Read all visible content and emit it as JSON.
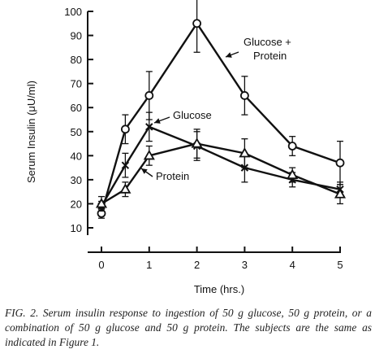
{
  "chart_data": {
    "type": "line",
    "xlabel": "Time (hrs.)",
    "ylabel": "Serum Insulin (μU/ml)",
    "xlim": [
      0,
      5
    ],
    "ylim": [
      10,
      100
    ],
    "xticks": [
      "0",
      "1",
      "2",
      "3",
      "4",
      "5"
    ],
    "yticks": [
      "10",
      "20",
      "30",
      "40",
      "50",
      "60",
      "70",
      "80",
      "90",
      "100"
    ],
    "series": [
      {
        "name": "Glucose + Protein",
        "label_lines": [
          "Glucose +",
          "Protein"
        ],
        "marker": "circle",
        "points": [
          {
            "x": 0,
            "y": 16,
            "err": 2
          },
          {
            "x": 0.5,
            "y": 51,
            "err": 6
          },
          {
            "x": 1,
            "y": 65,
            "err": 10
          },
          {
            "x": 2,
            "y": 95,
            "err": 12
          },
          {
            "x": 3,
            "y": 65,
            "err": 8
          },
          {
            "x": 4,
            "y": 44,
            "err": 4
          },
          {
            "x": 5,
            "y": 37,
            "err": 9
          }
        ]
      },
      {
        "name": "Glucose",
        "label_lines": [
          "Glucose"
        ],
        "marker": "x",
        "points": [
          {
            "x": 0,
            "y": 19,
            "err": 2
          },
          {
            "x": 0.5,
            "y": 36,
            "err": 5
          },
          {
            "x": 1,
            "y": 52,
            "err": 6
          },
          {
            "x": 2,
            "y": 44,
            "err": 6
          },
          {
            "x": 3,
            "y": 35,
            "err": 6
          },
          {
            "x": 4,
            "y": 30,
            "err": 3
          },
          {
            "x": 5,
            "y": 26,
            "err": 3
          }
        ]
      },
      {
        "name": "Protein",
        "label_lines": [
          "Protein"
        ],
        "marker": "triangle",
        "points": [
          {
            "x": 0,
            "y": 20,
            "err": 3
          },
          {
            "x": 0.5,
            "y": 26,
            "err": 3
          },
          {
            "x": 1,
            "y": 40,
            "err": 4
          },
          {
            "x": 2,
            "y": 45,
            "err": 6
          },
          {
            "x": 3,
            "y": 41,
            "err": 6
          },
          {
            "x": 4,
            "y": 32,
            "err": 3
          },
          {
            "x": 5,
            "y": 24,
            "err": 4
          }
        ]
      }
    ],
    "grid": false,
    "legend": "inline labels with leader arrows"
  },
  "caption": {
    "text": "FIG. 2. Serum insulin response to ingestion of 50 g glucose, 50 g protein, or a combination of 50 g glucose and 50 g protein. The subjects are the same as indicated in Figure 1."
  }
}
